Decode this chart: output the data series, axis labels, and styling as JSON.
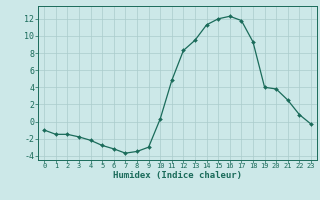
{
  "x": [
    0,
    1,
    2,
    3,
    4,
    5,
    6,
    7,
    8,
    9,
    10,
    11,
    12,
    13,
    14,
    15,
    16,
    17,
    18,
    19,
    20,
    21,
    22,
    23
  ],
  "y": [
    -1.0,
    -1.5,
    -1.5,
    -1.8,
    -2.2,
    -2.8,
    -3.2,
    -3.7,
    -3.5,
    -3.0,
    0.3,
    4.8,
    8.3,
    9.5,
    11.3,
    12.0,
    12.3,
    11.8,
    9.3,
    4.0,
    3.8,
    2.5,
    0.8,
    -0.3
  ],
  "xlabel": "Humidex (Indice chaleur)",
  "ylim": [
    -4.5,
    13.5
  ],
  "xlim": [
    -0.5,
    23.5
  ],
  "yticks": [
    -4,
    -2,
    0,
    2,
    4,
    6,
    8,
    10,
    12
  ],
  "xticks": [
    0,
    1,
    2,
    3,
    4,
    5,
    6,
    7,
    8,
    9,
    10,
    11,
    12,
    13,
    14,
    15,
    16,
    17,
    18,
    19,
    20,
    21,
    22,
    23
  ],
  "line_color": "#1a6b5a",
  "marker": "D",
  "markersize": 2.0,
  "bg_color": "#cce8e8",
  "grid_color": "#aacccc",
  "font_color": "#1a6b5a",
  "font_family": "monospace",
  "xlabel_fontsize": 6.5,
  "ytick_fontsize": 6.0,
  "xtick_fontsize": 5.0
}
